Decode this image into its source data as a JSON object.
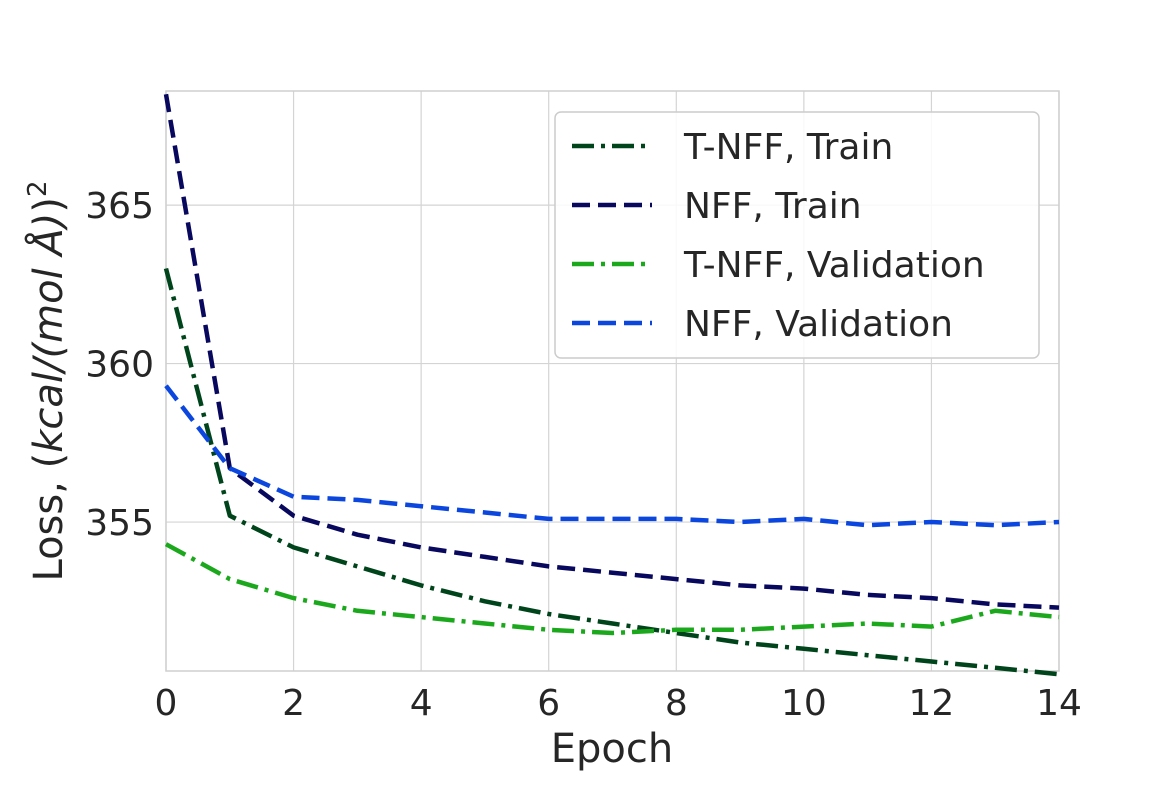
{
  "chart_data": {
    "type": "line",
    "title": "",
    "xlabel": "Epoch",
    "ylabel_prefix": "Loss, (",
    "ylabel_italic": "kcal/(mol Å)",
    "ylabel_suffix": ")",
    "ylabel_superscript": "2",
    "xlim": [
      0,
      14
    ],
    "ylim": [
      350.3,
      368.6
    ],
    "xticks": [
      0,
      2,
      4,
      6,
      8,
      10,
      12,
      14
    ],
    "yticks": [
      355,
      360,
      365
    ],
    "grid": true,
    "legend_position": "top-right",
    "x": [
      0,
      1,
      2,
      3,
      4,
      5,
      6,
      7,
      8,
      9,
      10,
      11,
      12,
      13,
      14
    ],
    "series": [
      {
        "name": "T-NFF, Train",
        "color": "#00441b",
        "style": "dashdot",
        "values": [
          363.0,
          355.2,
          354.2,
          353.6,
          353.0,
          352.5,
          352.1,
          351.8,
          351.5,
          351.2,
          351.0,
          350.8,
          350.6,
          350.4,
          350.2
        ]
      },
      {
        "name": "NFF, Train",
        "color": "#08085e",
        "style": "dashed",
        "values": [
          368.5,
          356.7,
          355.2,
          354.6,
          354.2,
          353.9,
          353.6,
          353.4,
          353.2,
          353.0,
          352.9,
          352.7,
          352.6,
          352.4,
          352.3
        ]
      },
      {
        "name": "T-NFF, Validation",
        "color": "#1ca81c",
        "style": "dashdot",
        "values": [
          354.3,
          353.2,
          352.6,
          352.2,
          352.0,
          351.8,
          351.6,
          351.5,
          351.6,
          351.6,
          351.7,
          351.8,
          351.7,
          352.2,
          352.0
        ]
      },
      {
        "name": "NFF, Validation",
        "color": "#0b46de",
        "style": "dashed",
        "values": [
          359.3,
          356.7,
          355.8,
          355.7,
          355.5,
          355.3,
          355.1,
          355.1,
          355.1,
          355.0,
          355.1,
          354.9,
          355.0,
          354.9,
          355.0
        ]
      }
    ]
  }
}
